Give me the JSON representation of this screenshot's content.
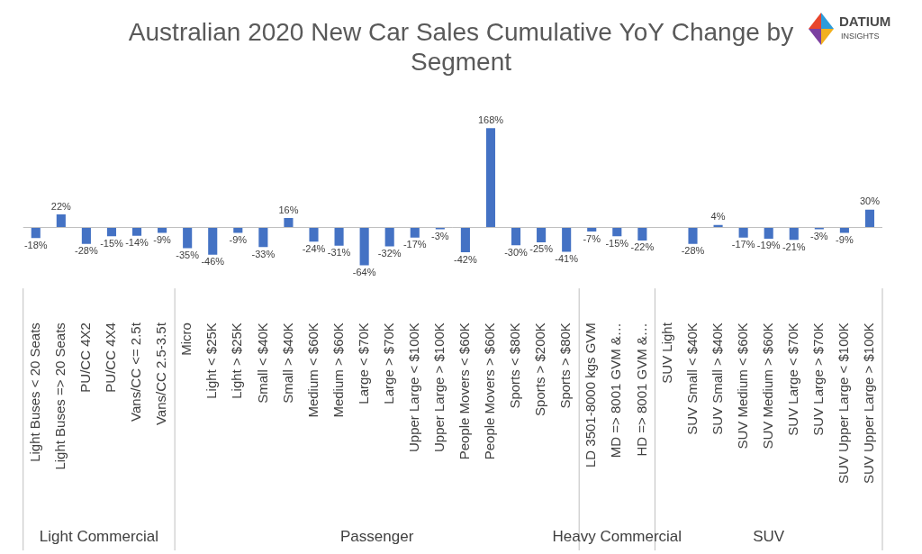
{
  "chart_data": {
    "type": "bar",
    "title": "Australian 2020 New Car Sales Cumulative YoY Change by Segment",
    "logo": "DATIUM INSIGHTS",
    "categories": [
      "Light Buses < 20 Seats",
      "Light Buses => 20 Seats",
      "PU/CC 4X2",
      "PU/CC 4X4",
      "Vans/CC <= 2.5t",
      "Vans/CC 2.5-3.5t",
      "Micro",
      "Light < $25K",
      "Light > $25K",
      "Small < $40K",
      "Small > $40K",
      "Medium < $60K",
      "Medium > $60K",
      "Large < $70K",
      "Large > $70K",
      "Upper Large < $100K",
      "Upper Large > $100K",
      "People Movers < $60K",
      "People Movers > $60K",
      "Sports < $80K",
      "Sports > $200K",
      "Sports > $80K",
      "LD 3501-8000 kgs GVM",
      "MD => 8001 GVM &…",
      "HD => 8001 GVM &…",
      "SUV Light",
      "SUV Small < $40K",
      "SUV Small > $40K",
      "SUV Medium < $60K",
      "SUV Medium > $60K",
      "SUV Large < $70K",
      "SUV Large > $70K",
      "SUV Upper Large < $100K",
      "SUV Upper Large > $100K"
    ],
    "category_groups": [
      "Light Commercial",
      "Light Commercial",
      "Light Commercial",
      "Light Commercial",
      "Light Commercial",
      "Light Commercial",
      "Passenger",
      "Passenger",
      "Passenger",
      "Passenger",
      "Passenger",
      "Passenger",
      "Passenger",
      "Passenger",
      "Passenger",
      "Passenger",
      "Passenger",
      "Passenger",
      "Passenger",
      "Passenger",
      "Passenger",
      "Passenger",
      "Heavy Commercial",
      "Heavy Commercial",
      "Heavy Commercial",
      "SUV",
      "SUV",
      "SUV",
      "SUV",
      "SUV",
      "SUV",
      "SUV",
      "SUV",
      "SUV"
    ],
    "values": [
      -18,
      22,
      -28,
      -15,
      -14,
      -9,
      -35,
      -46,
      -9,
      -33,
      16,
      -24,
      -31,
      -64,
      -32,
      -17,
      -3,
      -42,
      168,
      -30,
      -25,
      -41,
      -7,
      -15,
      -22,
      null,
      -28,
      4,
      -17,
      -19,
      -21,
      -3,
      -9,
      30
    ],
    "value_labels": [
      "-18%",
      "22%",
      "-28%",
      "-15%",
      "-14%",
      "-9%",
      "-35%",
      "-46%",
      "-9%",
      "-33%",
      "16%",
      "-24%",
      "-31%",
      "-64%",
      "-32%",
      "-17%",
      "-3%",
      "-42%",
      "168%",
      "-30%",
      "-25%",
      "-41%",
      "-7%",
      "-15%",
      "-22%",
      null,
      "-28%",
      "4%",
      "-17%",
      "-19%",
      "-21%",
      "-3%",
      "-9%",
      "30%"
    ],
    "color": "#4472c4",
    "data_labels": true,
    "tick_labels": "x",
    "grid": false
  }
}
